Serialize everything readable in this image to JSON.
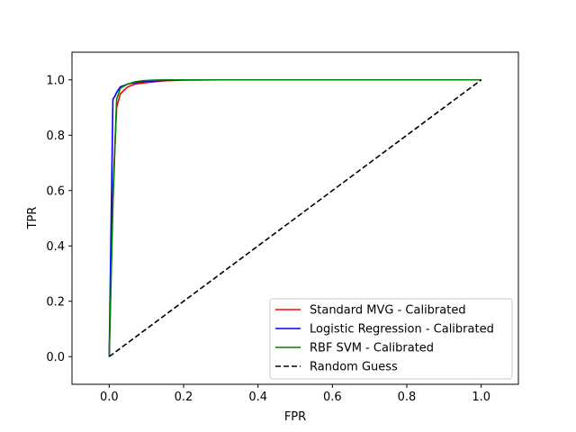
{
  "chart_data": {
    "type": "line",
    "title": "",
    "xlabel": "FPR",
    "ylabel": "TPR",
    "xlim": [
      -0.1,
      1.1
    ],
    "ylim": [
      -0.1,
      1.1
    ],
    "xticks": [
      0.0,
      0.2,
      0.4,
      0.6,
      0.8,
      1.0
    ],
    "yticks": [
      0.0,
      0.2,
      0.4,
      0.6,
      0.8,
      1.0
    ],
    "xtick_labels": [
      "0.0",
      "0.2",
      "0.4",
      "0.6",
      "0.8",
      "1.0"
    ],
    "ytick_labels": [
      "0.0",
      "0.2",
      "0.4",
      "0.6",
      "0.8",
      "1.0"
    ],
    "grid": false,
    "legend_position": "lower-right",
    "series": [
      {
        "name": "Standard MVG - Calibrated",
        "color": "#ff0000",
        "style": "solid",
        "x": [
          0.0,
          0.01,
          0.02,
          0.03,
          0.05,
          0.07,
          0.1,
          0.15,
          0.2,
          0.3,
          1.0
        ],
        "y": [
          0.0,
          0.6,
          0.9,
          0.95,
          0.975,
          0.985,
          0.99,
          0.997,
          0.999,
          1.0,
          1.0
        ]
      },
      {
        "name": "Logistic Regression - Calibrated",
        "color": "#0000ff",
        "style": "solid",
        "x": [
          0.0,
          0.01,
          0.015,
          0.02,
          0.03,
          0.05,
          0.07,
          0.1,
          0.15,
          0.2,
          1.0
        ],
        "y": [
          0.0,
          0.93,
          0.94,
          0.955,
          0.975,
          0.985,
          0.99,
          0.995,
          0.998,
          1.0,
          1.0
        ]
      },
      {
        "name": "RBF SVM - Calibrated",
        "color": "#008000",
        "style": "solid",
        "x": [
          0.0,
          0.01,
          0.02,
          0.03,
          0.05,
          0.07,
          0.09,
          0.12,
          0.15,
          0.2,
          1.0
        ],
        "y": [
          0.0,
          0.55,
          0.93,
          0.97,
          0.985,
          0.993,
          0.997,
          0.999,
          1.0,
          1.0,
          1.0
        ]
      },
      {
        "name": "Random Guess",
        "color": "#000000",
        "style": "dashed",
        "x": [
          0.0,
          1.0
        ],
        "y": [
          0.0,
          1.0
        ]
      }
    ]
  }
}
